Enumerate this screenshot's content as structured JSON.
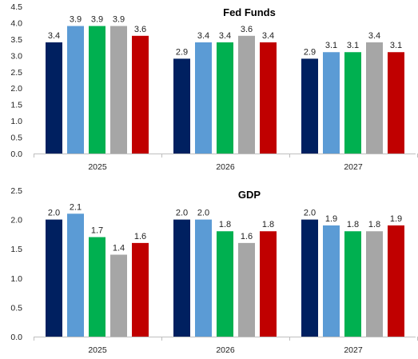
{
  "chart_data": [
    {
      "type": "bar",
      "title": "Fed Funds",
      "categories": [
        "2025",
        "2026",
        "2027"
      ],
      "ylim": [
        0,
        4.5
      ],
      "yticks": [
        "0.0",
        "0.5",
        "1.0",
        "1.5",
        "2.0",
        "2.5",
        "3.0",
        "3.5",
        "4.0",
        "4.5"
      ],
      "grid": false,
      "series": [
        {
          "color": "#002060",
          "values": [
            3.4,
            2.9,
            2.9
          ],
          "labels": [
            "3.4",
            "2.9",
            "2.9"
          ]
        },
        {
          "color": "#5B9BD5",
          "values": [
            3.9,
            3.4,
            3.1
          ],
          "labels": [
            "3.9",
            "3.4",
            "3.1"
          ]
        },
        {
          "color": "#00B050",
          "values": [
            3.9,
            3.4,
            3.1
          ],
          "labels": [
            "3.9",
            "3.4",
            "3.1"
          ]
        },
        {
          "color": "#A6A6A6",
          "values": [
            3.9,
            3.6,
            3.4
          ],
          "labels": [
            "3.9",
            "3.6",
            "3.4"
          ]
        },
        {
          "color": "#C00000",
          "values": [
            3.6,
            3.4,
            3.1
          ],
          "labels": [
            "3.6",
            "3.4",
            "3.1"
          ]
        }
      ]
    },
    {
      "type": "bar",
      "title": "GDP",
      "categories": [
        "2025",
        "2026",
        "2027"
      ],
      "ylim": [
        0,
        2.5
      ],
      "yticks": [
        "0.0",
        "0.5",
        "1.0",
        "1.5",
        "2.0",
        "2.5"
      ],
      "grid": false,
      "series": [
        {
          "color": "#002060",
          "values": [
            2.0,
            2.0,
            2.0
          ],
          "labels": [
            "2.0",
            "2.0",
            "2.0"
          ]
        },
        {
          "color": "#5B9BD5",
          "values": [
            2.1,
            2.0,
            1.9
          ],
          "labels": [
            "2.1",
            "2.0",
            "1.9"
          ]
        },
        {
          "color": "#00B050",
          "values": [
            1.7,
            1.8,
            1.8
          ],
          "labels": [
            "1.7",
            "1.8",
            "1.8"
          ]
        },
        {
          "color": "#A6A6A6",
          "values": [
            1.4,
            1.6,
            1.8
          ],
          "labels": [
            "1.4",
            "1.6",
            "1.8"
          ]
        },
        {
          "color": "#C00000",
          "values": [
            1.6,
            1.8,
            1.9
          ],
          "labels": [
            "1.6",
            "1.8",
            "1.9"
          ]
        }
      ]
    }
  ]
}
